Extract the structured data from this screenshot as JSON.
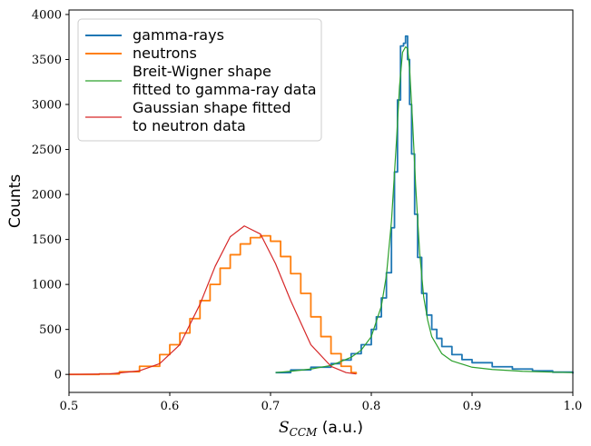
{
  "chart_data": {
    "type": "line",
    "xlabel_math": "S",
    "xlabel_math_sub": "CCM",
    "xlabel_unit": " (a.u.)",
    "ylabel": "Counts",
    "xlim": [
      0.5,
      1.0
    ],
    "ylim": [
      -200,
      4050
    ],
    "xticks": [
      "0.5",
      "0.6",
      "0.7",
      "0.8",
      "0.9",
      "1.0"
    ],
    "yticks": [
      "0",
      "500",
      "1000",
      "1500",
      "2000",
      "2500",
      "3000",
      "3500",
      "4000"
    ],
    "grid": false,
    "legend_position": "top-left",
    "colors": {
      "gamma": "#1f77b4",
      "neutron": "#ff7f0e",
      "bw_fit": "#2ca02c",
      "gauss_fit": "#d62728"
    },
    "series": [
      {
        "name": "gamma-rays",
        "style": "step",
        "x": [
          0.705,
          0.72,
          0.74,
          0.76,
          0.77,
          0.78,
          0.79,
          0.8,
          0.805,
          0.81,
          0.815,
          0.82,
          0.823,
          0.826,
          0.829,
          0.832,
          0.834,
          0.836,
          0.838,
          0.84,
          0.843,
          0.846,
          0.85,
          0.855,
          0.86,
          0.865,
          0.87,
          0.88,
          0.89,
          0.9,
          0.92,
          0.94,
          0.96,
          0.98,
          1.0
        ],
        "y": [
          20,
          50,
          80,
          120,
          160,
          230,
          330,
          500,
          640,
          850,
          1130,
          1630,
          2250,
          3050,
          3650,
          3680,
          3760,
          3500,
          3000,
          2450,
          1780,
          1300,
          900,
          660,
          500,
          400,
          310,
          220,
          165,
          130,
          85,
          60,
          40,
          25,
          10
        ]
      },
      {
        "name": "neutrons",
        "style": "step",
        "x": [
          0.5,
          0.53,
          0.55,
          0.57,
          0.59,
          0.6,
          0.61,
          0.62,
          0.63,
          0.64,
          0.65,
          0.66,
          0.67,
          0.68,
          0.69,
          0.7,
          0.71,
          0.72,
          0.73,
          0.74,
          0.75,
          0.76,
          0.77,
          0.78,
          0.785
        ],
        "y": [
          0,
          5,
          30,
          90,
          220,
          330,
          460,
          620,
          820,
          1000,
          1180,
          1330,
          1450,
          1520,
          1540,
          1480,
          1310,
          1120,
          900,
          640,
          420,
          230,
          90,
          20,
          5
        ]
      },
      {
        "name": "Breit-Wigner shape\nfitted to gamma-ray data",
        "style": "line",
        "x": [
          0.705,
          0.72,
          0.74,
          0.76,
          0.78,
          0.79,
          0.8,
          0.81,
          0.815,
          0.82,
          0.825,
          0.828,
          0.831,
          0.834,
          0.836,
          0.838,
          0.841,
          0.844,
          0.848,
          0.852,
          0.856,
          0.86,
          0.87,
          0.88,
          0.9,
          0.92,
          0.95,
          0.98,
          1.0
        ],
        "y": [
          20,
          35,
          60,
          100,
          190,
          270,
          420,
          760,
          1100,
          1700,
          2600,
          3200,
          3580,
          3640,
          3620,
          3400,
          2800,
          2100,
          1350,
          860,
          600,
          420,
          230,
          150,
          80,
          55,
          35,
          25,
          20
        ]
      },
      {
        "name": "Gaussian shape fitted\nto neutron data",
        "style": "line",
        "x": [
          0.5,
          0.54,
          0.57,
          0.59,
          0.61,
          0.63,
          0.645,
          0.66,
          0.674,
          0.69,
          0.705,
          0.72,
          0.74,
          0.76,
          0.775,
          0.785
        ],
        "y": [
          0,
          5,
          40,
          120,
          330,
          780,
          1200,
          1530,
          1650,
          1560,
          1230,
          820,
          330,
          90,
          20,
          5
        ]
      }
    ]
  }
}
